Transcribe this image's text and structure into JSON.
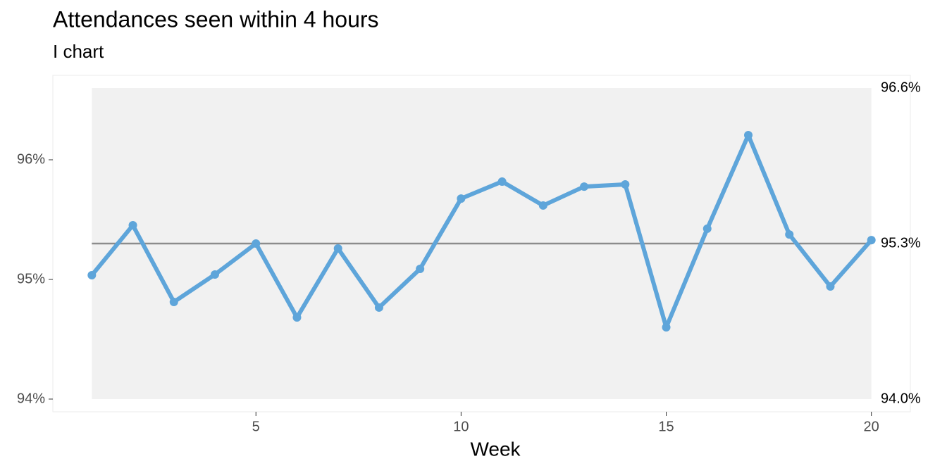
{
  "chart_data": {
    "type": "line",
    "title": "Attendances seen within 4 hours",
    "subtitle": "I chart",
    "x_label": "Week",
    "x": [
      1,
      2,
      3,
      4,
      5,
      6,
      7,
      8,
      9,
      10,
      11,
      12,
      13,
      14,
      15,
      16,
      17,
      18,
      19,
      20
    ],
    "series": [
      {
        "color": "#5ea5da",
        "values": [
          95.035,
          95.453,
          94.812,
          95.041,
          95.3,
          94.682,
          95.259,
          94.765,
          95.088,
          95.676,
          95.818,
          95.618,
          95.776,
          95.794,
          94.6,
          95.424,
          96.206,
          95.376,
          94.941,
          95.329
        ]
      }
    ],
    "center_line": {
      "value": 95.3,
      "label": "95.3%",
      "color": "#8c8c8c"
    },
    "upper_limit": {
      "value": 96.6,
      "label": "96.6%"
    },
    "lower_limit": {
      "value": 94.0,
      "label": "94.0%"
    },
    "limit_fill": "#f1f1f1",
    "xlim": [
      0.05,
      20.95
    ],
    "xticks": [
      5,
      10,
      15,
      20
    ],
    "ylim": [
      93.894,
      96.706
    ],
    "yticks": [
      {
        "value": 94,
        "label": "94%"
      },
      {
        "value": 95,
        "label": "95%"
      },
      {
        "value": 96,
        "label": "96%"
      }
    ]
  }
}
